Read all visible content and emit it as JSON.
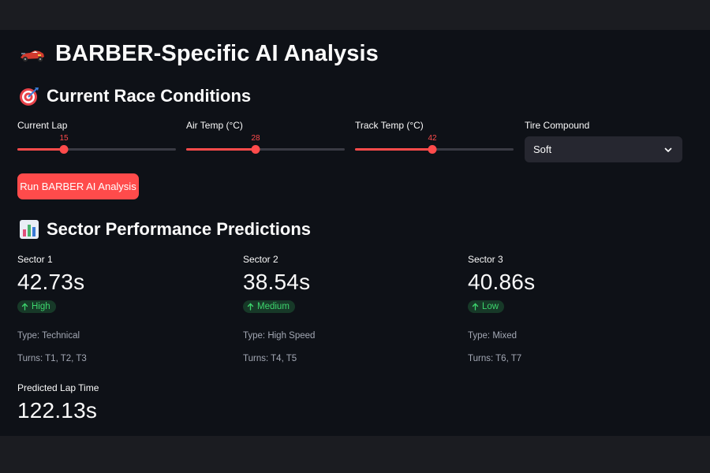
{
  "page": {
    "title": "BARBER-Specific AI Analysis"
  },
  "conditions": {
    "heading": "Current Race Conditions",
    "sliders": [
      {
        "label": "Current Lap",
        "value": "15",
        "fraction": 0.29
      },
      {
        "label": "Air Temp (°C)",
        "value": "28",
        "fraction": 0.44
      },
      {
        "label": "Track Temp (°C)",
        "value": "42",
        "fraction": 0.49
      }
    ],
    "tire": {
      "label": "Tire Compound",
      "selected": "Soft"
    },
    "run_button": "Run BARBER AI Analysis"
  },
  "sectors": {
    "heading": "Sector Performance Predictions",
    "items": [
      {
        "label": "Sector 1",
        "time": "42.73s",
        "delta": "High",
        "type": "Type: Technical",
        "turns": "Turns: T1, T2, T3"
      },
      {
        "label": "Sector 2",
        "time": "38.54s",
        "delta": "Medium",
        "type": "Type: High Speed",
        "turns": "Turns: T4, T5"
      },
      {
        "label": "Sector 3",
        "time": "40.86s",
        "delta": "Low",
        "type": "Type: Mixed",
        "turns": "Turns: T6, T7"
      }
    ],
    "lap": {
      "label": "Predicted Lap Time",
      "value": "122.13s"
    }
  },
  "colors": {
    "accent": "#ff4b4b",
    "background": "#0e1117",
    "badge_text": "#3dd56d",
    "badge_bg": "#173928"
  }
}
